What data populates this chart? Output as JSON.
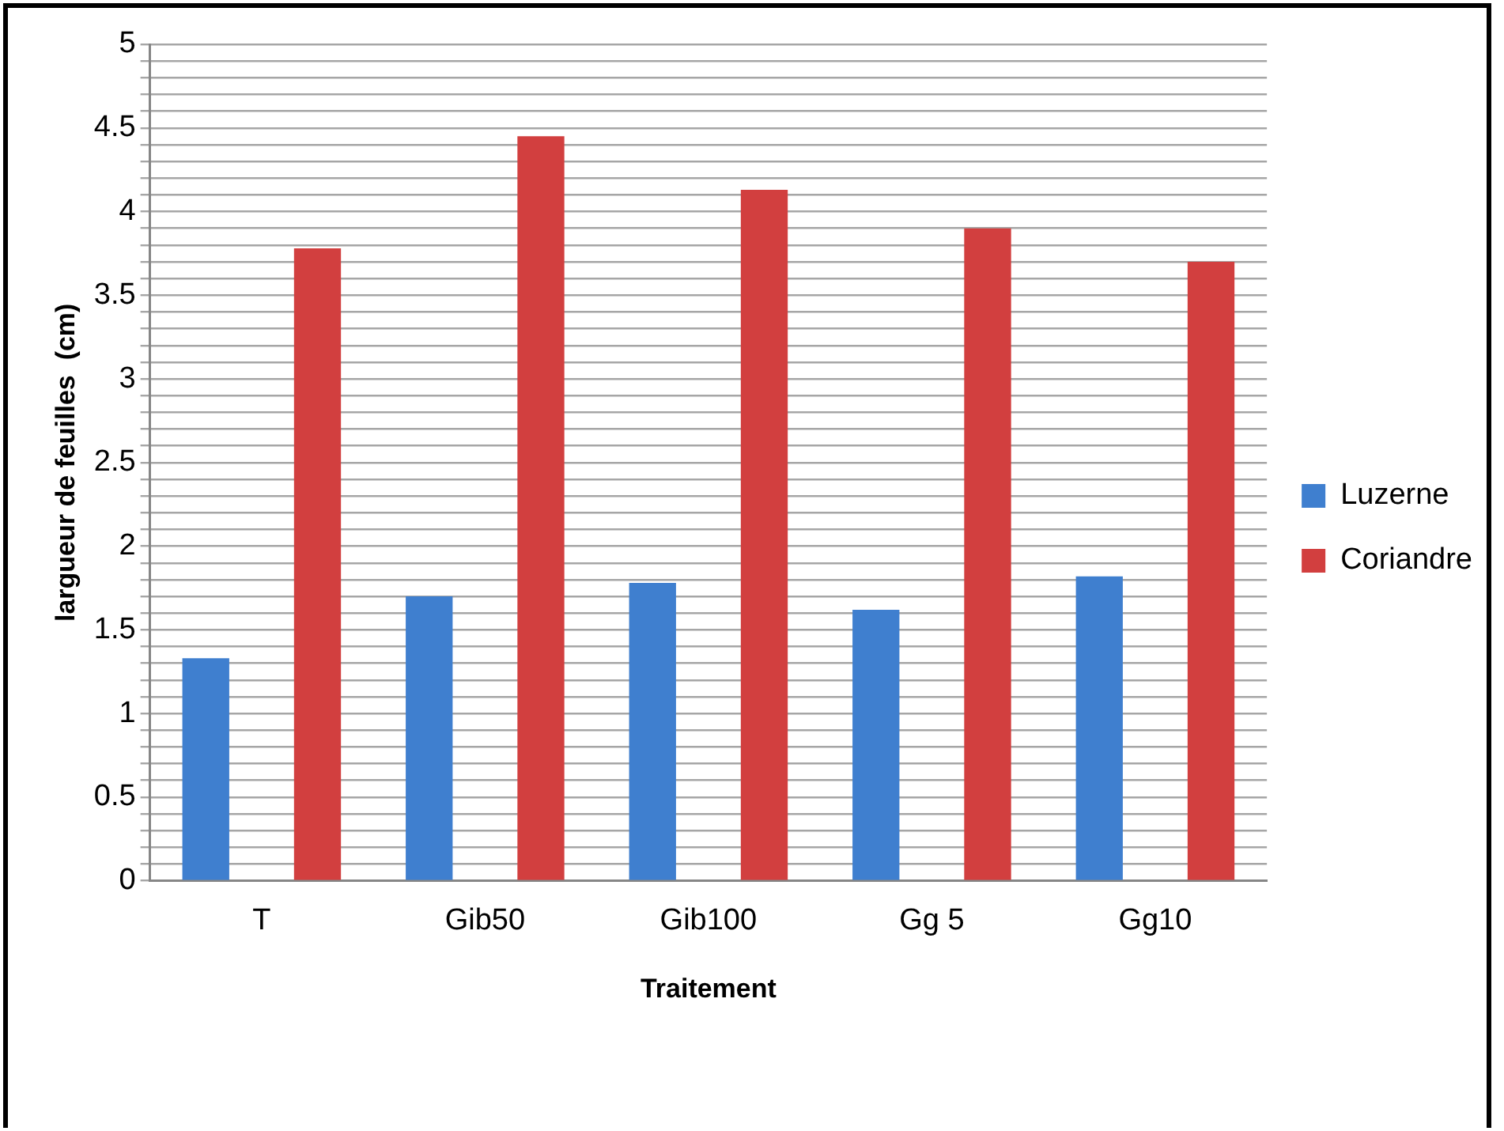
{
  "chart_data": {
    "type": "bar",
    "xlabel": "Traitement",
    "ylabel": "largueur de feuilles  (cm)",
    "categories": [
      "T",
      "Gib50",
      "Gib100",
      "Gg 5",
      "Gg10"
    ],
    "series": [
      {
        "name": "Luzerne",
        "color": "#3f7fcf",
        "values": [
          1.33,
          1.7,
          1.78,
          1.62,
          1.82
        ]
      },
      {
        "name": "Coriandre",
        "color": "#d23f3f",
        "values": [
          3.78,
          4.45,
          4.13,
          3.9,
          3.7
        ]
      }
    ],
    "ylim": [
      0,
      5
    ],
    "yticks": [
      0,
      {
        "value": 0.1,
        "label": null
      },
      {
        "value": 0.2,
        "label": null
      },
      {
        "value": 0.3,
        "label": null
      },
      {
        "value": 0.4,
        "label": null
      },
      0.5,
      {
        "value": 0.6,
        "label": null
      },
      {
        "value": 0.7,
        "label": null
      },
      {
        "value": 0.8,
        "label": null
      },
      {
        "value": 0.9,
        "label": null
      },
      1,
      {
        "value": 1.1,
        "label": null
      },
      {
        "value": 1.2,
        "label": null
      },
      {
        "value": 1.3,
        "label": null
      },
      {
        "value": 1.4,
        "label": null
      },
      1.5,
      {
        "value": 1.6,
        "label": null
      },
      {
        "value": 1.7,
        "label": null
      },
      {
        "value": 1.8,
        "label": null
      },
      {
        "value": 1.9,
        "label": null
      },
      2,
      {
        "value": 2.1,
        "label": null
      },
      {
        "value": 2.2,
        "label": null
      },
      {
        "value": 2.3,
        "label": null
      },
      {
        "value": 2.4,
        "label": null
      },
      2.5,
      {
        "value": 2.6,
        "label": null
      },
      {
        "value": 2.7,
        "label": null
      },
      {
        "value": 2.8,
        "label": null
      },
      {
        "value": 2.9,
        "label": null
      },
      3,
      {
        "value": 3.1,
        "label": null
      },
      {
        "value": 3.2,
        "label": null
      },
      {
        "value": 3.3,
        "label": null
      },
      {
        "value": 3.4,
        "label": null
      },
      3.5,
      {
        "value": 3.6,
        "label": null
      },
      {
        "value": 3.7,
        "label": null
      },
      {
        "value": 3.8,
        "label": null
      },
      {
        "value": 3.9,
        "label": null
      },
      4,
      {
        "value": 4.1,
        "label": null
      },
      {
        "value": 4.2,
        "label": null
      },
      {
        "value": 4.3,
        "label": null
      },
      {
        "value": 4.4,
        "label": null
      },
      4.5,
      {
        "value": 4.6,
        "label": null
      },
      {
        "value": 4.7,
        "label": null
      },
      {
        "value": 4.8,
        "label": null
      },
      {
        "value": 4.9,
        "label": null
      },
      5
    ],
    "grid": "y",
    "legend": "right"
  }
}
